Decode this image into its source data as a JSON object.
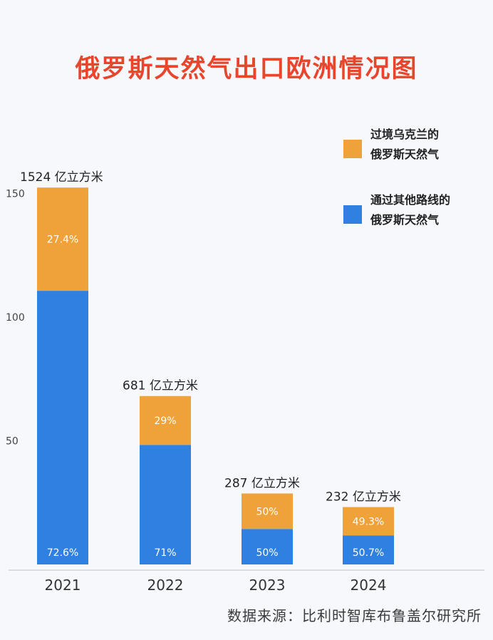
{
  "title": "俄罗斯天然气出口欧洲情况图",
  "source": "数据来源：比利时智库布鲁盖尔研究所",
  "colors": {
    "title": "#e8452c",
    "ukraine": "#f0a23a",
    "other": "#2f80e0"
  },
  "chart_data": {
    "type": "bar",
    "stacked": true,
    "categories": [
      "2021",
      "2022",
      "2023",
      "2024"
    ],
    "ylim": [
      0,
      160
    ],
    "yticks": [
      50,
      100,
      150
    ],
    "grid": false,
    "legend_position": "top-right",
    "totals": [
      152.4,
      68.1,
      28.7,
      23.2
    ],
    "total_labels": [
      "1524 亿立方米",
      "681 亿立方米",
      "287 亿立方米",
      "232 亿立方米"
    ],
    "series": [
      {
        "name_lines": [
          "通过其他路线的",
          "俄罗斯天然气"
        ],
        "color": "#2f80e0",
        "share_labels": [
          "72.6%",
          "71%",
          "50%",
          "50.7%"
        ],
        "shares": [
          0.726,
          0.71,
          0.5,
          0.507
        ]
      },
      {
        "name_lines": [
          "过境乌克兰的",
          "俄罗斯天然气"
        ],
        "color": "#f0a23a",
        "share_labels": [
          "27.4%",
          "29%",
          "50%",
          "49.3%"
        ],
        "shares": [
          0.274,
          0.29,
          0.5,
          0.493
        ]
      }
    ]
  }
}
